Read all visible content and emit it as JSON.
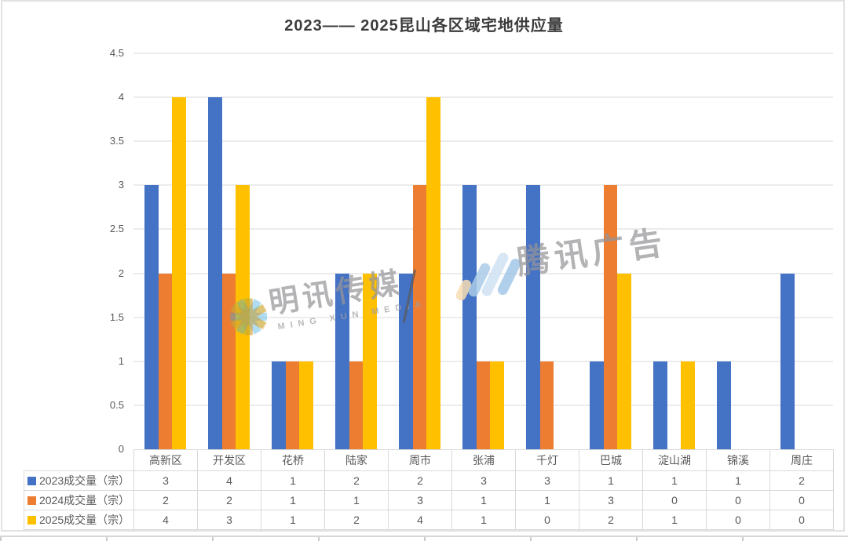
{
  "chart_data": {
    "type": "bar",
    "title": "2023—— 2025昆山各区域宅地供应量",
    "categories": [
      "高新区",
      "开发区",
      "花桥",
      "陆家",
      "周市",
      "张浦",
      "千灯",
      "巴城",
      "淀山湖",
      "锦溪",
      "周庄"
    ],
    "series": [
      {
        "name": "2023成交量（宗）",
        "color": "#4472C4",
        "values": [
          3,
          4,
          1,
          2,
          2,
          3,
          3,
          1,
          1,
          1,
          2
        ]
      },
      {
        "name": "2024成交量（宗）",
        "color": "#ED7D31",
        "values": [
          2,
          2,
          1,
          1,
          3,
          1,
          1,
          3,
          0,
          0,
          0
        ]
      },
      {
        "name": "2025成交量（宗）",
        "color": "#FFC000",
        "values": [
          4,
          3,
          1,
          2,
          4,
          1,
          0,
          2,
          1,
          0,
          0
        ]
      }
    ],
    "y_ticks": [
      "0",
      "0.5",
      "1",
      "1.5",
      "2",
      "2.5",
      "3",
      "3.5",
      "4",
      "4.5"
    ],
    "ylim": [
      0,
      4.5
    ],
    "xlabel": "",
    "ylabel": "",
    "grid": true,
    "legend_position": "left-of-data-table",
    "data_table": true
  },
  "watermarks": {
    "mingxun": {
      "cn": "明讯传媒",
      "en": "MING XUN MEDIA"
    },
    "tencent": {
      "cn": "腾讯广告"
    }
  },
  "colors": {
    "bar_2023": "#4472C4",
    "bar_2024": "#ED7D31",
    "bar_2025": "#FFC000",
    "gridline": "#ECECEC",
    "table_border": "#D9D9D9",
    "text": "#595959",
    "title_text": "#3B3B3B"
  }
}
